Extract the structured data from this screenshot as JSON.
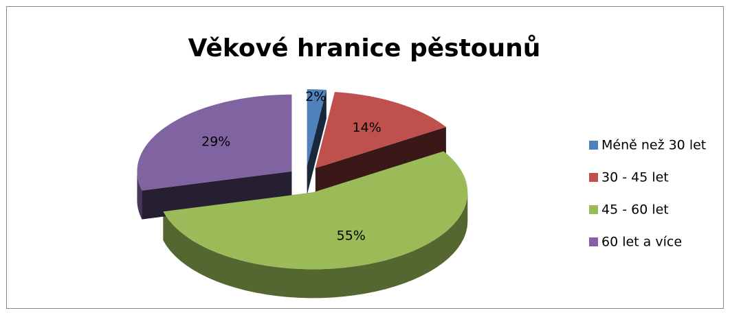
{
  "chart_data": {
    "type": "pie",
    "title": "Věkové hranice pěstounů",
    "categories": [
      "Méně než 30 let",
      "30 - 45 let",
      "45 - 60 let",
      "60 let a více"
    ],
    "values": [
      2,
      14,
      55,
      29
    ],
    "value_labels": [
      "2%",
      "14%",
      "55%",
      "29%"
    ],
    "colors": [
      "#4f81bd",
      "#c0504d",
      "#9bbb59",
      "#8064a2"
    ],
    "legend": "right"
  }
}
